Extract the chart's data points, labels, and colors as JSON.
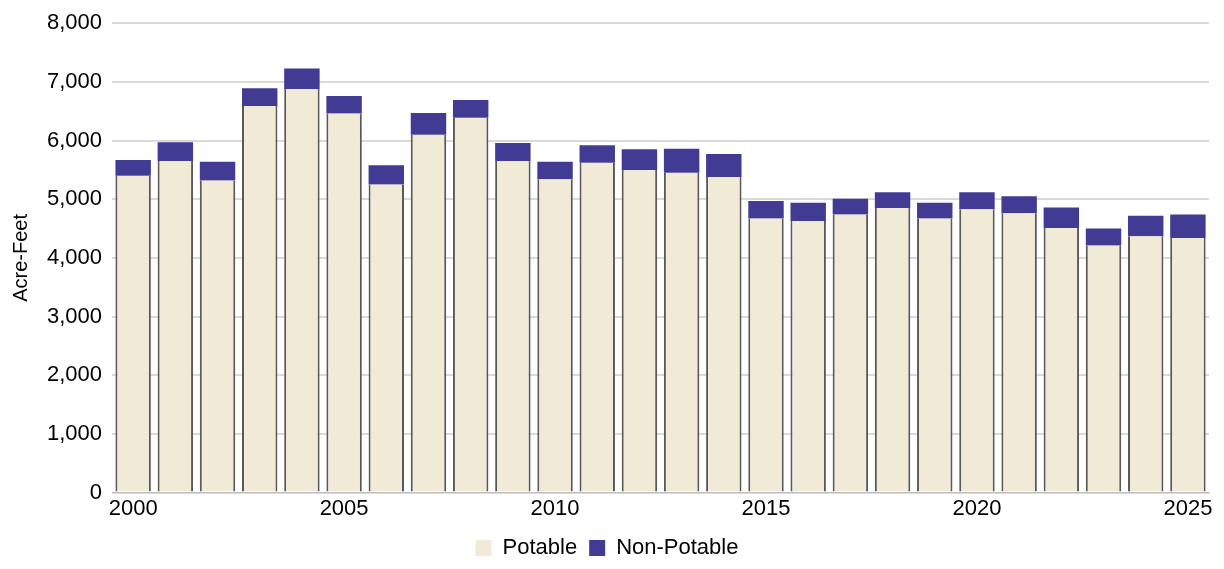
{
  "chart_data": {
    "type": "bar",
    "stacked": true,
    "ylabel": "Acre-Feet",
    "categories": [
      "2000",
      null,
      null,
      null,
      null,
      "2005",
      null,
      null,
      null,
      null,
      "2010",
      null,
      null,
      null,
      null,
      "2015",
      null,
      null,
      null,
      null,
      "2020",
      null,
      null,
      null,
      null,
      "2025"
    ],
    "series": [
      {
        "name": "Potable",
        "color": "#f0ead6",
        "values": [
          5400,
          5650,
          5320,
          6590,
          6880,
          6460,
          5250,
          6100,
          6390,
          5650,
          5340,
          5620,
          5500,
          5450,
          5380,
          4670,
          4630,
          4740,
          4850,
          4670,
          4830,
          4760,
          4510,
          4210,
          4370,
          4340
        ]
      },
      {
        "name": "Non-Potable",
        "color": "#423b94",
        "values": [
          270,
          320,
          320,
          300,
          350,
          300,
          330,
          370,
          300,
          310,
          300,
          300,
          350,
          410,
          390,
          300,
          310,
          270,
          270,
          270,
          290,
          290,
          350,
          290,
          350,
          400
        ]
      }
    ],
    "ylim": [
      0,
      8000
    ],
    "yticks": [
      {
        "value": 0,
        "label": "0"
      },
      {
        "value": 1000,
        "label": "1,000"
      },
      {
        "value": 2000,
        "label": "2,000"
      },
      {
        "value": 3000,
        "label": "3,000"
      },
      {
        "value": 4000,
        "label": "4,000"
      },
      {
        "value": 5000,
        "label": "5,000"
      },
      {
        "value": 6000,
        "label": "6,000"
      },
      {
        "value": 7000,
        "label": "7,000"
      },
      {
        "value": 8000,
        "label": "8,000"
      }
    ],
    "grid": "y",
    "legend": "bottom"
  }
}
